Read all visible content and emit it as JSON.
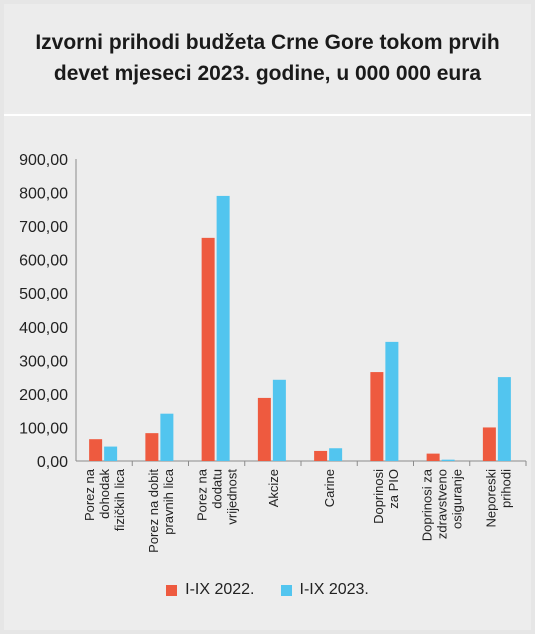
{
  "chart_data": {
    "type": "bar",
    "title": "Izvorni prihodi budžeta Crne Gore tokom prvih devet mjeseci 2023. godine, u 000 000 eura",
    "xlabel": "",
    "ylabel": "",
    "ylim": [
      0,
      900
    ],
    "yticks": [
      "0,00",
      "100,00",
      "200,00",
      "300,00",
      "400,00",
      "500,00",
      "600,00",
      "700,00",
      "800,00",
      "900,00"
    ],
    "grid": false,
    "legend_position": "bottom",
    "categories": [
      [
        "Porez na",
        "dohodak",
        "fizičkih lica"
      ],
      [
        "Porez na dobit",
        "pravnih lica"
      ],
      [
        "Porez na",
        "dodatu",
        "vrijednost"
      ],
      [
        "Akcize"
      ],
      [
        "Carine"
      ],
      [
        "Doprinosi",
        "za PIO"
      ],
      [
        "Doprinosi za",
        "zdravstveno",
        "osiguranje"
      ],
      [
        "Neporeski",
        "prihodi"
      ]
    ],
    "series": [
      {
        "name": "I-IX 2022.",
        "color": "#ee5a3f",
        "values": [
          65,
          83,
          665,
          188,
          30,
          265,
          22,
          100
        ]
      },
      {
        "name": "I-IX 2023.",
        "color": "#52c5ef",
        "values": [
          43,
          141,
          790,
          242,
          38,
          355,
          4,
          250
        ]
      }
    ]
  }
}
